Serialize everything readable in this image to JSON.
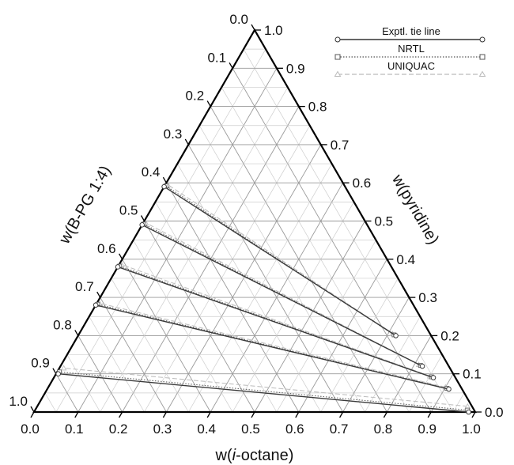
{
  "chart_data": {
    "type": "ternary",
    "axes": {
      "bottom": {
        "label_prefix": "w(",
        "label_italic": "i",
        "label_suffix": "-octane)"
      },
      "left": {
        "label_prefix": "w(",
        "label_italic": "",
        "label_suffix": "B-PG 1:4)"
      },
      "right": {
        "label_prefix": "w(",
        "label_italic": "",
        "label_suffix": "pyridine)"
      }
    },
    "ticks": [
      "0.0",
      "0.1",
      "0.2",
      "0.3",
      "0.4",
      "0.5",
      "0.6",
      "0.7",
      "0.8",
      "0.9",
      "1.0"
    ],
    "grid": true,
    "legend": {
      "position": "top-right",
      "entries": [
        {
          "label": "Exptl. tie line",
          "marker": "circle",
          "line": "solid",
          "color": "#333333"
        },
        {
          "label": "NRTL",
          "marker": "square",
          "line": "dotted",
          "color": "#555555"
        },
        {
          "label": "UNIQUAC",
          "marker": "triangle",
          "line": "dashed",
          "color": "#bbbbbb"
        }
      ]
    },
    "series": [
      {
        "name": "Exptl. tie line",
        "tie_lines": [
          {
            "raffinate": {
              "pyridine": 0.0,
              "i_octane": 0.985
            },
            "extract": {
              "pyridine": 0.1,
              "i_octane": 0.005
            }
          },
          {
            "raffinate": {
              "pyridine": 0.06,
              "i_octane": 0.91
            },
            "extract": {
              "pyridine": 0.28,
              "i_octane": 0.0
            }
          },
          {
            "raffinate": {
              "pyridine": 0.09,
              "i_octane": 0.86
            },
            "extract": {
              "pyridine": 0.38,
              "i_octane": 0.0
            }
          },
          {
            "raffinate": {
              "pyridine": 0.12,
              "i_octane": 0.82
            },
            "extract": {
              "pyridine": 0.49,
              "i_octane": 0.0
            }
          },
          {
            "raffinate": {
              "pyridine": 0.2,
              "i_octane": 0.72
            },
            "extract": {
              "pyridine": 0.59,
              "i_octane": 0.0
            }
          }
        ]
      },
      {
        "name": "NRTL",
        "tie_lines": [
          {
            "raffinate": {
              "pyridine": 0.005,
              "i_octane": 0.98
            },
            "extract": {
              "pyridine": 0.105,
              "i_octane": 0.005
            }
          },
          {
            "raffinate": {
              "pyridine": 0.062,
              "i_octane": 0.905
            },
            "extract": {
              "pyridine": 0.282,
              "i_octane": 0.003
            }
          },
          {
            "raffinate": {
              "pyridine": 0.092,
              "i_octane": 0.855
            },
            "extract": {
              "pyridine": 0.382,
              "i_octane": 0.003
            }
          },
          {
            "raffinate": {
              "pyridine": 0.122,
              "i_octane": 0.815
            },
            "extract": {
              "pyridine": 0.492,
              "i_octane": 0.003
            }
          },
          {
            "raffinate": {
              "pyridine": 0.202,
              "i_octane": 0.715
            },
            "extract": {
              "pyridine": 0.592,
              "i_octane": 0.003
            }
          }
        ]
      },
      {
        "name": "UNIQUAC",
        "tie_lines": [
          {
            "raffinate": {
              "pyridine": 0.015,
              "i_octane": 0.975
            },
            "extract": {
              "pyridine": 0.115,
              "i_octane": 0.01
            }
          },
          {
            "raffinate": {
              "pyridine": 0.065,
              "i_octane": 0.9
            },
            "extract": {
              "pyridine": 0.285,
              "i_octane": 0.006
            }
          },
          {
            "raffinate": {
              "pyridine": 0.094,
              "i_octane": 0.85
            },
            "extract": {
              "pyridine": 0.386,
              "i_octane": 0.006
            }
          },
          {
            "raffinate": {
              "pyridine": 0.124,
              "i_octane": 0.81
            },
            "extract": {
              "pyridine": 0.495,
              "i_octane": 0.006
            }
          },
          {
            "raffinate": {
              "pyridine": 0.205,
              "i_octane": 0.71
            },
            "extract": {
              "pyridine": 0.595,
              "i_octane": 0.006
            }
          }
        ]
      }
    ]
  }
}
